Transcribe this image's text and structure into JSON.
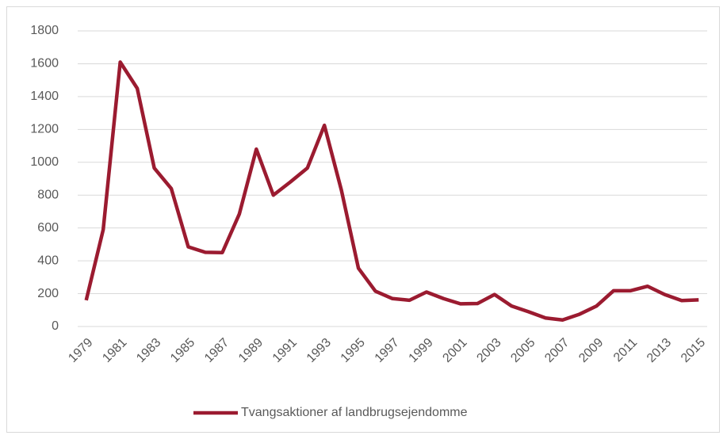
{
  "chart_data": {
    "type": "line",
    "categories": [
      "1979",
      null,
      "1981",
      null,
      "1983",
      null,
      "1985",
      null,
      "1987",
      null,
      "1989",
      null,
      "1991",
      null,
      "1993",
      null,
      "1995",
      null,
      "1997",
      null,
      "1999",
      null,
      "2001",
      null,
      "2003",
      null,
      "2005",
      null,
      "2007",
      null,
      "2009",
      null,
      "2011",
      null,
      "2013",
      null,
      "2015"
    ],
    "series": [
      {
        "name": "Tvangsaktioner af landbrugsejendomme",
        "color": "#9b1b30",
        "values": [
          160,
          590,
          1610,
          1450,
          965,
          840,
          485,
          452,
          450,
          685,
          1080,
          800,
          880,
          965,
          1225,
          830,
          355,
          215,
          170,
          160,
          210,
          170,
          138,
          140,
          195,
          125,
          90,
          52,
          40,
          75,
          125,
          218,
          218,
          245,
          195,
          158,
          162
        ]
      }
    ],
    "ylim": [
      0,
      1800
    ],
    "yticks": [
      0,
      200,
      400,
      600,
      800,
      1000,
      1200,
      1400,
      1600,
      1800
    ],
    "grid": true,
    "legend": "bottom"
  }
}
